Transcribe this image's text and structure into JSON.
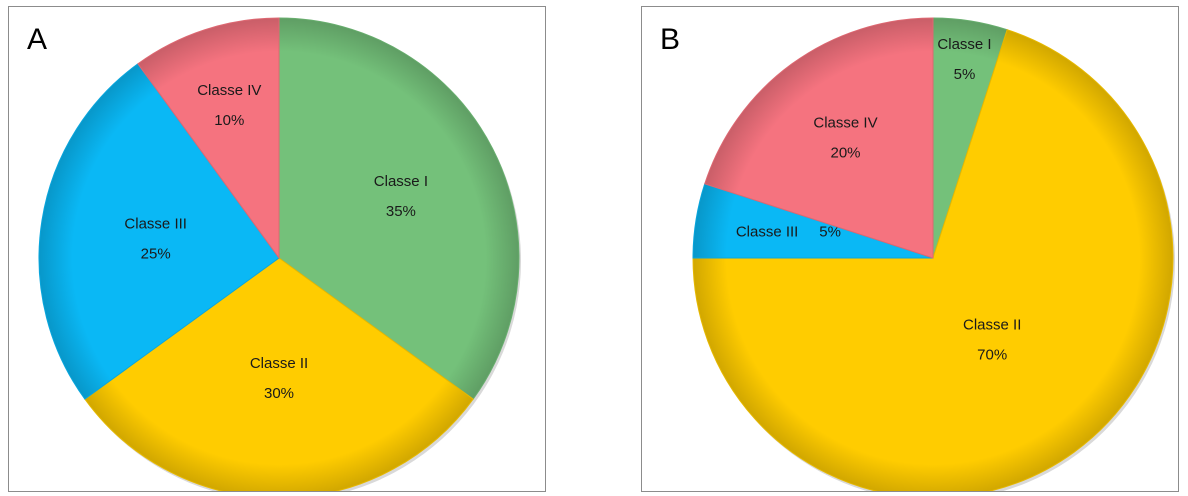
{
  "colors": {
    "Classe I": "#74c17a",
    "Classe II": "#ffcc00",
    "Classe III": "#0ab8f5",
    "Classe IV": "#f5737f"
  },
  "chart_data": [
    {
      "type": "pie",
      "panel_label": "A",
      "slices": [
        {
          "label": "Classe I",
          "value": 35,
          "value_label": "35%"
        },
        {
          "label": "Classe II",
          "value": 30,
          "value_label": "30%"
        },
        {
          "label": "Classe III",
          "value": 25,
          "value_label": "25%"
        },
        {
          "label": "Classe IV",
          "value": 10,
          "value_label": "10%"
        }
      ]
    },
    {
      "type": "pie",
      "panel_label": "B",
      "slices": [
        {
          "label": "Classe I",
          "value": 5,
          "value_label": "5%"
        },
        {
          "label": "Classe II",
          "value": 70,
          "value_label": "70%"
        },
        {
          "label": "Classe III",
          "value": 5,
          "value_label": "5%"
        },
        {
          "label": "Classe IV",
          "value": 20,
          "value_label": "20%"
        }
      ]
    }
  ]
}
